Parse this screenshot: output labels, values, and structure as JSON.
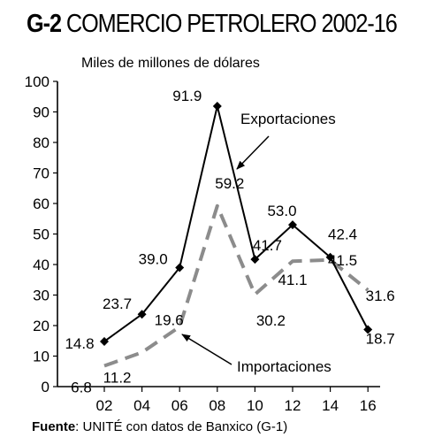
{
  "header": {
    "code": "G-2",
    "title": "COMERCIO PETROLERO 2002-16"
  },
  "source": {
    "label": "Fuente",
    "text": ": UNITÉ con datos de Banxico (G-1)"
  },
  "chart_data": {
    "type": "line",
    "title": "COMERCIO PETROLERO 2002-16",
    "unit_label": "Miles de millones de dólares",
    "x": [
      "02",
      "04",
      "06",
      "08",
      "10",
      "12",
      "14",
      "16"
    ],
    "ylim": [
      0,
      100
    ],
    "yticks": [
      0,
      10,
      20,
      30,
      40,
      50,
      60,
      70,
      80,
      90,
      100
    ],
    "grid": false,
    "series": [
      {
        "name": "Exportaciones",
        "style": "solid",
        "marker": "diamond",
        "color": "#000000",
        "values": [
          14.8,
          23.7,
          39.0,
          91.9,
          41.7,
          53.0,
          42.4,
          18.7
        ],
        "labels": [
          "14.8",
          "23.7",
          "39.0",
          "91.9",
          "41.7",
          "53.0",
          "42.4",
          "18.7"
        ]
      },
      {
        "name": "Importaciones",
        "style": "dashed",
        "marker": "none",
        "color": "#8c8c8c",
        "values": [
          6.8,
          11.2,
          19.6,
          59.2,
          30.2,
          41.1,
          41.5,
          31.6
        ],
        "labels": [
          "6.8",
          "11.2",
          "19.6",
          "59.2",
          "30.2",
          "41.1",
          "41.5",
          "31.6"
        ]
      }
    ]
  }
}
